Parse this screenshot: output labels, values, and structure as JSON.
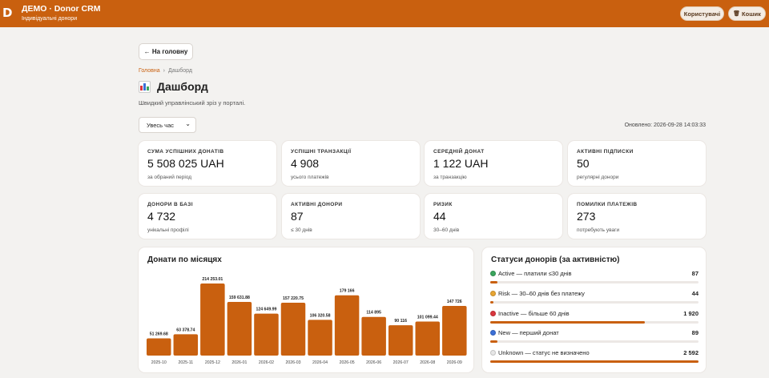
{
  "header": {
    "logo": "D",
    "title": "ДЕМО · Donor CRM",
    "subtitle": "Індивідуальні донори",
    "users_button": "Користувачі",
    "cart_button": "Кошик",
    "cart_icon": "trash-icon"
  },
  "nav": {
    "home_button": "← На головну",
    "breadcrumb_home": "Головна",
    "breadcrumb_sep": "›",
    "breadcrumb_current": "Дашборд"
  },
  "page": {
    "title": "Дашборд",
    "title_icon": "bar-chart-icon",
    "subtitle": "Швидкий управлінський зріз у порталі.",
    "period_value": "Увесь час",
    "updated": "Оновлено: 2026-09-28 14:03:33"
  },
  "kpis": [
    {
      "label": "СУМА УСПІШНИХ ДОНАТІВ",
      "value": "5 508 025 UAH",
      "note": "за обраний період"
    },
    {
      "label": "УСПІШНІ ТРАНЗАКЦІЇ",
      "value": "4 908",
      "note": "усього платежів"
    },
    {
      "label": "СЕРЕДНІЙ ДОНАТ",
      "value": "1 122 UAH",
      "note": "за транзакцію"
    },
    {
      "label": "АКТИВНІ ПІДПИСКИ",
      "value": "50",
      "note": "регулярні донори"
    },
    {
      "label": "ДОНОРИ В БАЗІ",
      "value": "4 732",
      "note": "унікальні профілі"
    },
    {
      "label": "АКТИВНІ ДОНОРИ",
      "value": "87",
      "note": "≤ 30 днів"
    },
    {
      "label": "РИЗИК",
      "value": "44",
      "note": "30–60 днів"
    },
    {
      "label": "ПОМИЛКИ ПЛАТЕЖІВ",
      "value": "273",
      "note": "потребують уваги"
    }
  ],
  "monthly": {
    "title": "Донати по місяцях"
  },
  "chart_data": {
    "type": "bar",
    "title": "Донати по місяцях",
    "categories": [
      "2025-10",
      "2025-11",
      "2025-12",
      "2026-01",
      "2026-02",
      "2026-03",
      "2026-04",
      "2026-05",
      "2026-06",
      "2026-07",
      "2026-08",
      "2026-09"
    ],
    "values": [
      51269.68,
      63378.74,
      214253.01,
      159631.88,
      124649.99,
      157220.75,
      106320.58,
      179166,
      114895,
      90116,
      101099.44,
      147726
    ],
    "labels": [
      "51 269.68",
      "63 378.74",
      "214 253.01",
      "159 631.88",
      "124 649.99",
      "157 220.75",
      "106 320.58",
      "179 166",
      "114 895",
      "90 116",
      "101 099.44",
      "147 726"
    ],
    "bar_color": "#c9600f",
    "ylim": [
      0,
      214253.01
    ],
    "grid": false
  },
  "statuses": {
    "title": "Статуси донорів (за активністю)",
    "max": 2592,
    "items": [
      {
        "label": "Active — платили ≤30 днів",
        "count": "87",
        "value": 87,
        "color": "#3aa55d",
        "icon": "green-circle-icon"
      },
      {
        "label": "Risk — 30–60 днів без платежу",
        "count": "44",
        "value": 44,
        "color": "#e7a534",
        "icon": "yellow-circle-icon"
      },
      {
        "label": "Inactive — більше 60 днів",
        "count": "1 920",
        "value": 1920,
        "color": "#d9363e",
        "icon": "red-circle-icon"
      },
      {
        "label": "New — перший донат",
        "count": "89",
        "value": 89,
        "color": "#3b6fd6",
        "icon": "blue-circle-icon"
      },
      {
        "label": "Unknown — статус не визначено",
        "count": "2 592",
        "value": 2592,
        "color": "#e6e6e6",
        "icon": "white-circle-icon"
      }
    ]
  }
}
